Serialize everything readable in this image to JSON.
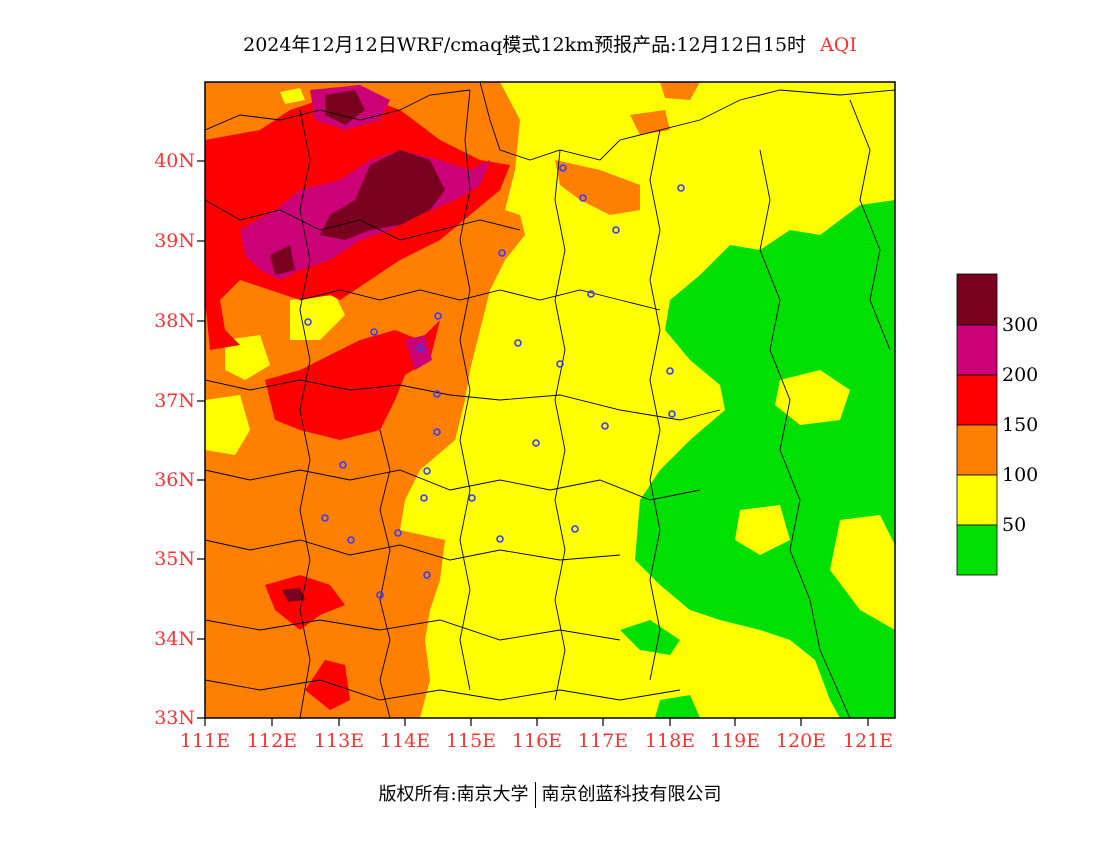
{
  "title": {
    "main": "2024年12月12日WRF/cmaq模式12km预报产品:12月12日15时",
    "variable": "AQI"
  },
  "axes": {
    "y_ticks": [
      "40N",
      "39N",
      "38N",
      "37N",
      "36N",
      "35N",
      "34N",
      "33N"
    ],
    "x_ticks": [
      "111E",
      "112E",
      "113E",
      "114E",
      "115E",
      "116E",
      "117E",
      "118E",
      "119E",
      "120E",
      "121E"
    ],
    "lon_range": [
      111,
      121.4
    ],
    "lat_range": [
      33,
      40.9
    ]
  },
  "legend": {
    "labels": [
      "300",
      "200",
      "150",
      "100",
      "50"
    ],
    "colors": [
      "#7a0020",
      "#cc0077",
      "#ff0000",
      "#ff7f00",
      "#ffff00",
      "#00e000"
    ]
  },
  "footer": {
    "left": "版权所有:南京大学",
    "right": "南京创蓝科技有限公司"
  }
}
